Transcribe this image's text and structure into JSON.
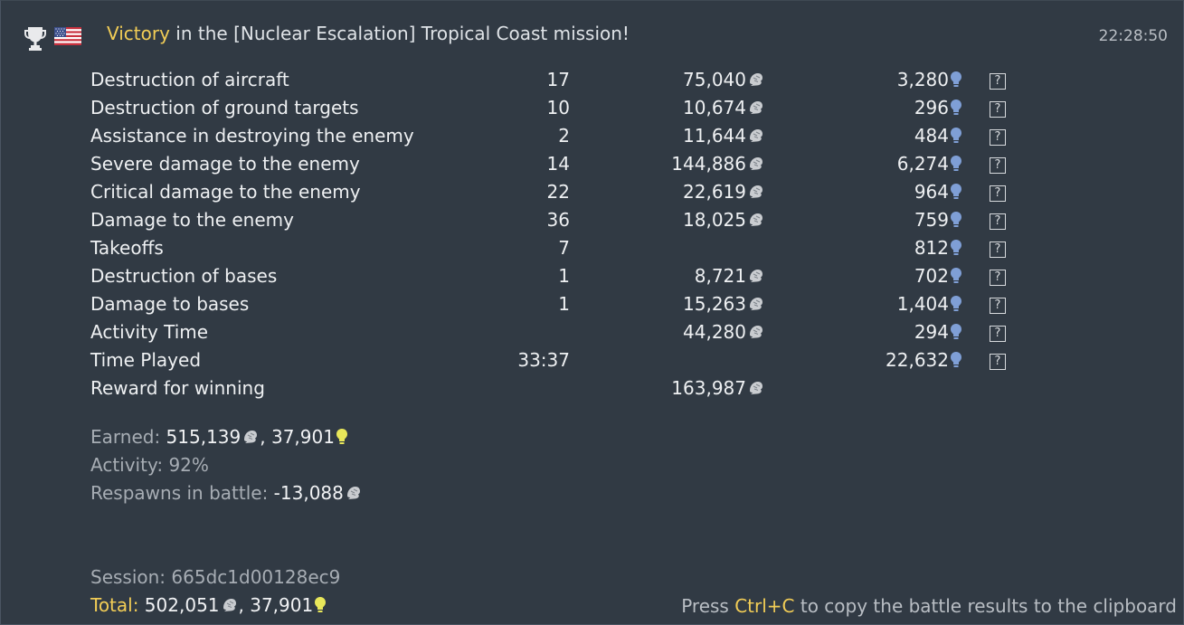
{
  "header": {
    "victory_word": "Victory",
    "mission_text": " in the [Nuclear Escalation] Tropical Coast mission!",
    "timestamp": "22:28:50"
  },
  "rows": [
    {
      "label": "Destruction of aircraft",
      "count": "17",
      "sl": "75,040",
      "rp": "3,280",
      "help": "?"
    },
    {
      "label": "Destruction of ground targets",
      "count": "10",
      "sl": "10,674",
      "rp": "296",
      "help": "?"
    },
    {
      "label": "Assistance in destroying the enemy",
      "count": "2",
      "sl": "11,644",
      "rp": "484",
      "help": "?"
    },
    {
      "label": "Severe damage to the enemy",
      "count": "14",
      "sl": "144,886",
      "rp": "6,274",
      "help": "?"
    },
    {
      "label": "Critical damage to the enemy",
      "count": "22",
      "sl": "22,619",
      "rp": "964",
      "help": "?"
    },
    {
      "label": "Damage to the enemy",
      "count": "36",
      "sl": "18,025",
      "rp": "759",
      "help": "?"
    },
    {
      "label": "Takeoffs",
      "count": "7",
      "sl": "",
      "rp": "812",
      "help": "?"
    },
    {
      "label": "Destruction of bases",
      "count": "1",
      "sl": "8,721",
      "rp": "702",
      "help": "?"
    },
    {
      "label": "Damage to bases",
      "count": "1",
      "sl": "15,263",
      "rp": "1,404",
      "help": "?"
    },
    {
      "label": "Activity Time",
      "count": "",
      "sl": "44,280",
      "rp": "294",
      "help": "?"
    },
    {
      "label": "Time Played",
      "count": "33:37",
      "sl": "",
      "rp": "22,632",
      "help": "?"
    },
    {
      "label": "Reward for winning",
      "count": "",
      "sl": "163,987",
      "rp": "",
      "help": ""
    }
  ],
  "summary": {
    "earned_label": "Earned: ",
    "earned_sl": "515,139",
    "sep": ", ",
    "earned_rp": "37,901",
    "activity_label": "Activity: ",
    "activity_value": "92%",
    "respawns_label": "Respawns in battle: ",
    "respawns_value": "-13,088",
    "session_label": "Session: ",
    "session_value": "665dc1d00128ec9",
    "total_label": "Total:",
    "total_sl": " 502,051",
    "total_rp": "37,901"
  },
  "footer": {
    "hint_prefix": "Press ",
    "hint_key": "Ctrl+C",
    "hint_suffix": " to copy the battle results to the clipboard"
  },
  "icons": {
    "trophy": "trophy-icon",
    "flag": "usa-flag-icon",
    "silver_lions": "silver-lions-icon",
    "research_points": "research-points-icon",
    "help": "help-icon"
  },
  "colors": {
    "background": "#313a44",
    "accent_gold": "#f2cd56",
    "rp_blue": "#7f9fd6",
    "rp_yellow": "#e8e75a",
    "muted_text": "#a7adb4"
  }
}
